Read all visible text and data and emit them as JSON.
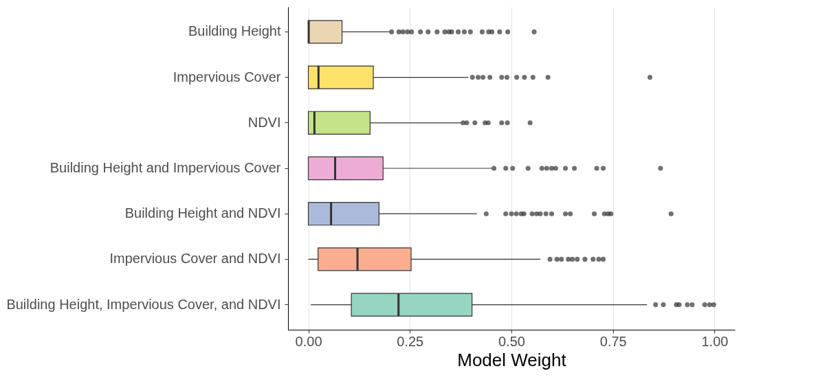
{
  "chart_data": {
    "type": "box",
    "orientation": "horizontal",
    "xlabel": "Model Weight",
    "categories": [
      "Building Height",
      "Impervious Cover",
      "NDVI",
      "Building Height and Impervious Cover",
      "Building Height and NDVI",
      "Impervious Cover and NDVI",
      "Building Height, Impervious Cover, and NDVI"
    ],
    "colors": [
      "#ebd6b4",
      "#ffe26a",
      "#c5e387",
      "#ecacd5",
      "#abbadb",
      "#fbae8f",
      "#95d5c1"
    ],
    "boxes": [
      {
        "low": 0,
        "q1": 0,
        "median": 0.001,
        "q3": 0.083,
        "high": 0.2,
        "outliers": [
          0.205,
          0.223,
          0.233,
          0.244,
          0.254,
          0.276,
          0.295,
          0.317,
          0.336,
          0.346,
          0.353,
          0.369,
          0.384,
          0.399,
          0.428,
          0.444,
          0.452,
          0.471,
          0.491,
          0.556
        ]
      },
      {
        "low": 0,
        "q1": 0,
        "median": 0.025,
        "q3": 0.16,
        "high": 0.394,
        "outliers": [
          0.404,
          0.418,
          0.43,
          0.447,
          0.476,
          0.489,
          0.513,
          0.532,
          0.553,
          0.59,
          0.841
        ]
      },
      {
        "low": 0,
        "q1": 0,
        "median": 0.015,
        "q3": 0.152,
        "high": 0.377,
        "outliers": [
          0.381,
          0.39,
          0.41,
          0.435,
          0.443,
          0.476,
          0.49,
          0.546
        ]
      },
      {
        "low": 0,
        "q1": 0,
        "median": 0.066,
        "q3": 0.184,
        "high": 0.452,
        "outliers": [
          0.457,
          0.486,
          0.503,
          0.541,
          0.575,
          0.587,
          0.599,
          0.609,
          0.633,
          0.655,
          0.71,
          0.726,
          0.867
        ]
      },
      {
        "low": 0,
        "q1": 0,
        "median": 0.056,
        "q3": 0.174,
        "high": 0.415,
        "outliers": [
          0.438,
          0.486,
          0.5,
          0.512,
          0.524,
          0.531,
          0.551,
          0.562,
          0.571,
          0.585,
          0.599,
          0.633,
          0.645,
          0.704,
          0.729,
          0.738,
          0.745,
          0.893
        ]
      },
      {
        "low": 0,
        "q1": 0.024,
        "median": 0.121,
        "q3": 0.253,
        "high": 0.571,
        "outliers": [
          0.595,
          0.612,
          0.623,
          0.64,
          0.65,
          0.662,
          0.681,
          0.701,
          0.715,
          0.726
        ]
      },
      {
        "low": 0.006,
        "q1": 0.106,
        "median": 0.222,
        "q3": 0.403,
        "high": 0.834,
        "outliers": [
          0.855,
          0.874,
          0.906,
          0.913,
          0.933,
          0.945,
          0.976,
          0.988,
          0.998
        ]
      }
    ],
    "xlim": [
      -0.05,
      1.05
    ],
    "xticks": [
      {
        "value": 0,
        "label": "0.00"
      },
      {
        "value": 0.25,
        "label": "0.25"
      },
      {
        "value": 0.5,
        "label": "0.50"
      },
      {
        "value": 0.75,
        "label": "0.75"
      },
      {
        "value": 1,
        "label": "1.00"
      }
    ],
    "grid": "x"
  }
}
